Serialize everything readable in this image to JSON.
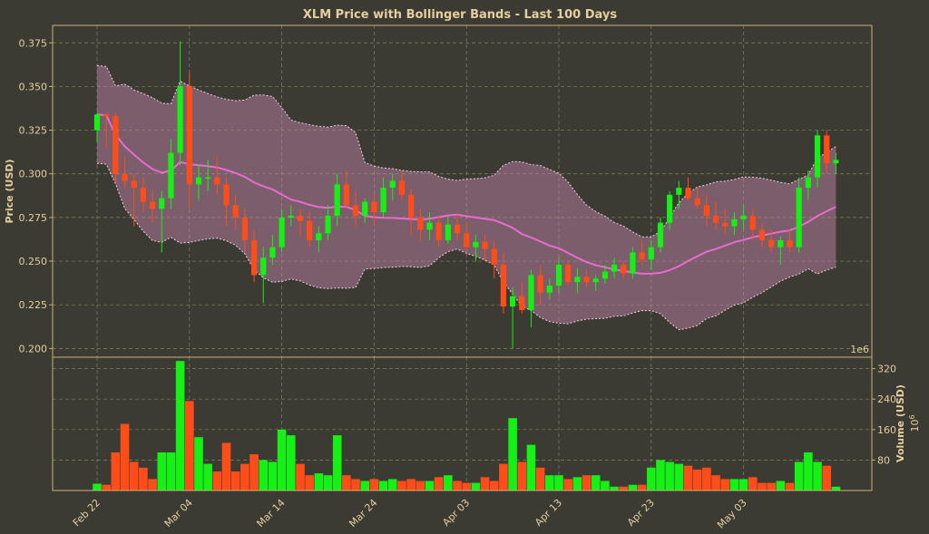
{
  "chart_data": {
    "type": "candlestick",
    "title": "XLM Price with Bollinger Bands - Last 100 Days",
    "ylabel": "Price (USD)",
    "ylim": [
      0.195,
      0.385
    ],
    "yticks": [
      "0.200",
      "0.225",
      "0.250",
      "0.275",
      "0.300",
      "0.325",
      "0.350",
      "0.375"
    ],
    "exponent_label": "1e6",
    "volume_ylabel": "Volume (USD)",
    "volume_ylim": [
      0,
      350
    ],
    "volume_yticks": [
      "80",
      "160",
      "240",
      "320"
    ],
    "volume_exponent": "10",
    "volume_exponent_sup": "6",
    "xticks": [
      "Feb 22",
      "Mar 04",
      "Mar 14",
      "Mar 24",
      "Apr 03",
      "Apr 13",
      "Apr 23",
      "May 03"
    ],
    "up_color": "#15f015",
    "down_color": "#ff4d1a",
    "band_color": "#c98ab0",
    "ma_color": "#e86cd0",
    "start_index": 0,
    "candles": [
      [
        0.325,
        0.335,
        0.318,
        0.334,
        18
      ],
      [
        0.334,
        0.335,
        0.315,
        0.333,
        15
      ],
      [
        0.333,
        0.335,
        0.295,
        0.3,
        100
      ],
      [
        0.3,
        0.31,
        0.292,
        0.296,
        175
      ],
      [
        0.296,
        0.3,
        0.27,
        0.292,
        75
      ],
      [
        0.292,
        0.298,
        0.278,
        0.284,
        60
      ],
      [
        0.284,
        0.29,
        0.272,
        0.28,
        30
      ],
      [
        0.28,
        0.29,
        0.255,
        0.286,
        100
      ],
      [
        0.286,
        0.32,
        0.28,
        0.312,
        100
      ],
      [
        0.312,
        0.376,
        0.305,
        0.35,
        340
      ],
      [
        0.35,
        0.358,
        0.28,
        0.294,
        235
      ],
      [
        0.294,
        0.305,
        0.285,
        0.298,
        140
      ],
      [
        0.298,
        0.308,
        0.29,
        0.298,
        70
      ],
      [
        0.298,
        0.31,
        0.288,
        0.294,
        50
      ],
      [
        0.294,
        0.298,
        0.27,
        0.282,
        125
      ],
      [
        0.282,
        0.288,
        0.268,
        0.275,
        50
      ],
      [
        0.275,
        0.28,
        0.255,
        0.262,
        70
      ],
      [
        0.262,
        0.268,
        0.238,
        0.242,
        95
      ],
      [
        0.242,
        0.258,
        0.226,
        0.252,
        80
      ],
      [
        0.252,
        0.265,
        0.248,
        0.258,
        75
      ],
      [
        0.258,
        0.28,
        0.255,
        0.275,
        160
      ],
      [
        0.275,
        0.282,
        0.27,
        0.276,
        145
      ],
      [
        0.276,
        0.28,
        0.264,
        0.273,
        70
      ],
      [
        0.273,
        0.278,
        0.258,
        0.262,
        40
      ],
      [
        0.262,
        0.27,
        0.255,
        0.266,
        45
      ],
      [
        0.266,
        0.282,
        0.262,
        0.276,
        40
      ],
      [
        0.276,
        0.3,
        0.27,
        0.294,
        145
      ],
      [
        0.294,
        0.302,
        0.28,
        0.282,
        40
      ],
      [
        0.282,
        0.29,
        0.27,
        0.276,
        30
      ],
      [
        0.276,
        0.286,
        0.272,
        0.284,
        25
      ],
      [
        0.284,
        0.288,
        0.27,
        0.278,
        30
      ],
      [
        0.278,
        0.298,
        0.275,
        0.292,
        25
      ],
      [
        0.292,
        0.3,
        0.285,
        0.296,
        30
      ],
      [
        0.296,
        0.302,
        0.285,
        0.288,
        25
      ],
      [
        0.288,
        0.292,
        0.265,
        0.275,
        30
      ],
      [
        0.275,
        0.28,
        0.262,
        0.268,
        25
      ],
      [
        0.268,
        0.278,
        0.262,
        0.272,
        25
      ],
      [
        0.272,
        0.276,
        0.258,
        0.262,
        35
      ],
      [
        0.262,
        0.275,
        0.26,
        0.271,
        40
      ],
      [
        0.271,
        0.277,
        0.262,
        0.266,
        25
      ],
      [
        0.266,
        0.272,
        0.255,
        0.258,
        20
      ],
      [
        0.258,
        0.265,
        0.25,
        0.261,
        20
      ],
      [
        0.261,
        0.265,
        0.25,
        0.257,
        35
      ],
      [
        0.257,
        0.262,
        0.24,
        0.248,
        25
      ],
      [
        0.248,
        0.255,
        0.22,
        0.224,
        70
      ],
      [
        0.224,
        0.235,
        0.2,
        0.23,
        190
      ],
      [
        0.23,
        0.238,
        0.22,
        0.222,
        75
      ],
      [
        0.222,
        0.245,
        0.212,
        0.242,
        120
      ],
      [
        0.242,
        0.248,
        0.225,
        0.232,
        60
      ],
      [
        0.232,
        0.24,
        0.228,
        0.236,
        40
      ],
      [
        0.236,
        0.252,
        0.232,
        0.248,
        40
      ],
      [
        0.248,
        0.25,
        0.236,
        0.238,
        30
      ],
      [
        0.238,
        0.246,
        0.232,
        0.241,
        35
      ],
      [
        0.241,
        0.245,
        0.235,
        0.238,
        40
      ],
      [
        0.238,
        0.242,
        0.233,
        0.24,
        40
      ],
      [
        0.24,
        0.248,
        0.237,
        0.244,
        25
      ],
      [
        0.244,
        0.252,
        0.24,
        0.248,
        10
      ],
      [
        0.248,
        0.25,
        0.24,
        0.243,
        10
      ],
      [
        0.243,
        0.258,
        0.24,
        0.255,
        15
      ],
      [
        0.255,
        0.262,
        0.248,
        0.251,
        15
      ],
      [
        0.251,
        0.262,
        0.245,
        0.258,
        60
      ],
      [
        0.258,
        0.275,
        0.255,
        0.272,
        80
      ],
      [
        0.272,
        0.29,
        0.268,
        0.288,
        75
      ],
      [
        0.288,
        0.296,
        0.28,
        0.292,
        70
      ],
      [
        0.292,
        0.298,
        0.285,
        0.286,
        65
      ],
      [
        0.286,
        0.292,
        0.28,
        0.282,
        55
      ],
      [
        0.282,
        0.288,
        0.27,
        0.276,
        60
      ],
      [
        0.276,
        0.284,
        0.268,
        0.272,
        40
      ],
      [
        0.272,
        0.28,
        0.266,
        0.27,
        30
      ],
      [
        0.27,
        0.278,
        0.265,
        0.274,
        30
      ],
      [
        0.274,
        0.282,
        0.268,
        0.276,
        30
      ],
      [
        0.276,
        0.28,
        0.262,
        0.268,
        35
      ],
      [
        0.268,
        0.272,
        0.258,
        0.262,
        20
      ],
      [
        0.262,
        0.268,
        0.255,
        0.258,
        20
      ],
      [
        0.258,
        0.264,
        0.248,
        0.262,
        25
      ],
      [
        0.262,
        0.268,
        0.255,
        0.258,
        20
      ],
      [
        0.258,
        0.298,
        0.255,
        0.292,
        75
      ],
      [
        0.292,
        0.302,
        0.285,
        0.298,
        100
      ],
      [
        0.298,
        0.325,
        0.292,
        0.322,
        75
      ],
      [
        0.322,
        0.325,
        0.3,
        0.306,
        65
      ],
      [
        0.306,
        0.312,
        0.3,
        0.308,
        10
      ]
    ]
  }
}
